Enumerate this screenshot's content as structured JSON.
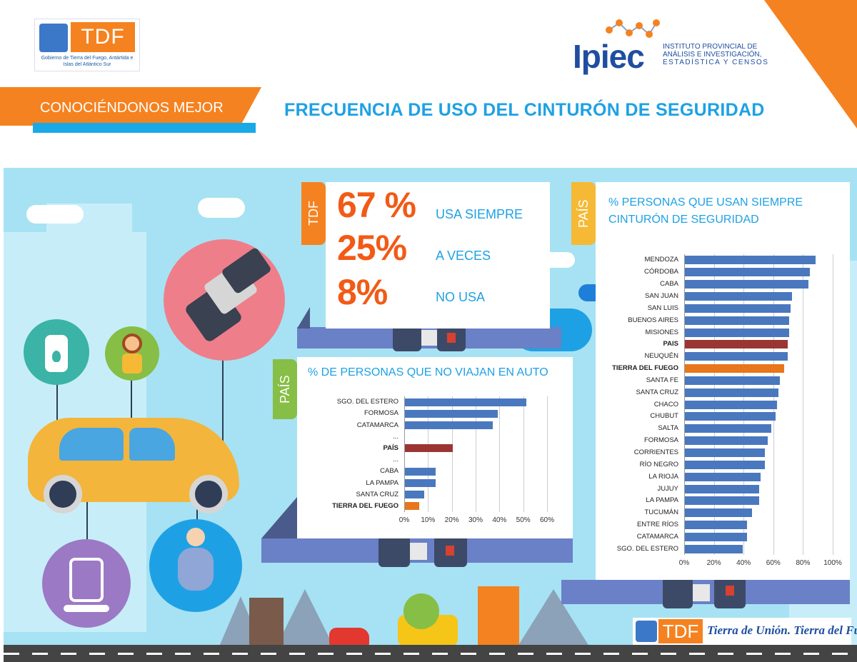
{
  "header": {
    "gov_logo_text": "TDF",
    "gov_logo_caption": "Gobierno de Tierra del Fuego, Antártida e Islas del Atlántico Sur",
    "ipiec_logo_text": "Ipiec",
    "ipiec_caption_line1": "INSTITUTO PROVINCIAL DE",
    "ipiec_caption_line2": "ANÁLISIS E INVESTIGACIÓN,",
    "ipiec_caption_line3": "ESTADÍSTICA Y CENSOS",
    "banner": "CONOCIÉNDONOS MEJOR",
    "title": "FRECUENCIA DE USO DEL CINTURÓN DE SEGURIDAD"
  },
  "tdf_panel": {
    "tag": "TDF",
    "rows": [
      {
        "value": "67 %",
        "label": "USA SIEMPRE"
      },
      {
        "value": "25%",
        "label": "A VECES"
      },
      {
        "value": "8%",
        "label": "NO USA"
      }
    ]
  },
  "colors": {
    "bar": "#4a78be",
    "pais": "#9b3533",
    "tdf": "#e8761a",
    "orange": "#f58220",
    "green": "#86be46",
    "yellow": "#f5b935"
  },
  "chart_data": [
    {
      "type": "bar",
      "orientation": "horizontal",
      "tag": "PAÍS",
      "title": "% DE PERSONAS QUE NO VIAJAN EN AUTO",
      "categories": [
        "SGO. DEL ESTERO",
        "FORMOSA",
        "CATAMARCA",
        "...",
        "PAÍS",
        "...",
        "CABA",
        "LA PAMPA",
        "SANTA CRUZ",
        "TIERRA DEL FUEGO"
      ],
      "values": [
        51,
        39,
        37,
        null,
        20,
        null,
        13,
        13,
        8,
        6
      ],
      "highlight": {
        "PAÍS": "pais",
        "TIERRA DEL FUEGO": "tdf"
      },
      "xticks": [
        "0%",
        "10%",
        "20%",
        "30%",
        "40%",
        "50%",
        "60%"
      ],
      "xlim": [
        0,
        60
      ]
    },
    {
      "type": "bar",
      "orientation": "horizontal",
      "tag": "PAÍS",
      "title_line1": "%  PERSONAS QUE USAN SIEMPRE",
      "title_line2": "CINTURÓN DE SEGURIDAD",
      "categories": [
        "MENDOZA",
        "CÓRDOBA",
        "CABA",
        "SAN JUAN",
        "SAN LUIS",
        "BUENOS AIRES",
        "MISIONES",
        "PAIS",
        "NEUQUÉN",
        "TIERRA DEL FUEGO",
        "SANTA FE",
        "SANTA CRUZ",
        "CHACO",
        "CHUBUT",
        "SALTA",
        "FORMOSA",
        "CORRIENTES",
        "RÍO NEGRO",
        "LA RIOJA",
        "JUJUY",
        "LA PAMPA",
        "TUCUMÁN",
        "ENTRE RÍOS",
        "CATAMARCA",
        "SGO. DEL ESTERO"
      ],
      "values": [
        88,
        84,
        83,
        72,
        71,
        70,
        70,
        69,
        69,
        67,
        64,
        63,
        62,
        61,
        58,
        56,
        54,
        54,
        51,
        50,
        50,
        45,
        42,
        42,
        39
      ],
      "highlight": {
        "PAIS": "pais",
        "TIERRA DEL FUEGO": "tdf"
      },
      "xticks": [
        "0%",
        "20%",
        "40%",
        "60%",
        "80%",
        "100%"
      ],
      "xlim": [
        0,
        100
      ]
    }
  ],
  "footer": {
    "logo_text": "TDF",
    "slogan": "Tierra de Unión. Tierra del Fuego."
  }
}
